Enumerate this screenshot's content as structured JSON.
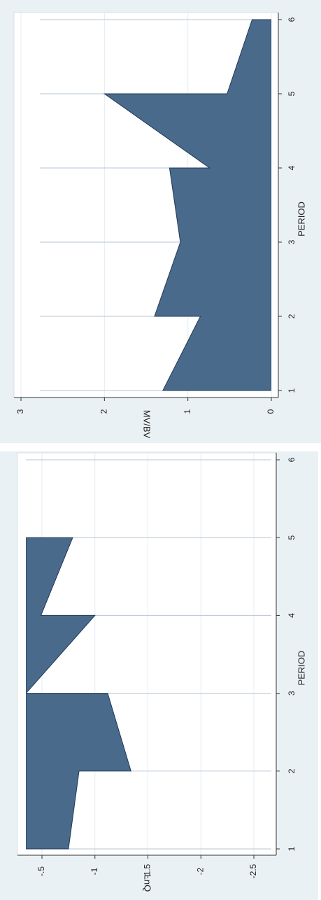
{
  "chart_data": [
    {
      "type": "area",
      "xlabel": "PERIOD",
      "ylabel": "MV/BV",
      "color": "#4a6a8c",
      "x": [
        1,
        2,
        2,
        3,
        3,
        4,
        4,
        5,
        5,
        6
      ],
      "values": [
        1.3,
        0.85,
        1.4,
        1.09,
        1.09,
        1.22,
        0.74,
        2.0,
        0.53,
        0.23
      ],
      "xlim": [
        1,
        6
      ],
      "xticks": [
        1,
        2,
        3,
        4,
        5,
        6
      ],
      "ylim": [
        0,
        3
      ],
      "yticks": [
        0,
        1,
        2,
        3
      ],
      "grid": true
    },
    {
      "type": "area",
      "xlabel": "PERIOD",
      "ylabel": "LnQ",
      "color": "#4a6a8c",
      "x": [
        1,
        2,
        2,
        3,
        3,
        4,
        4,
        5
      ],
      "values": [
        -0.75,
        -0.85,
        -1.34,
        -1.12,
        -0.35,
        -1.0,
        -0.49,
        -0.79
      ],
      "xlim": [
        1,
        6
      ],
      "xticks": [
        1,
        2,
        3,
        4,
        5,
        6
      ],
      "ylim": [
        -2.5,
        -0.5
      ],
      "yticks": [
        -2.5,
        -2,
        -1.5,
        -1,
        {
          "value": -0.5,
          "label": "-.5"
        }
      ],
      "grid": true
    }
  ]
}
